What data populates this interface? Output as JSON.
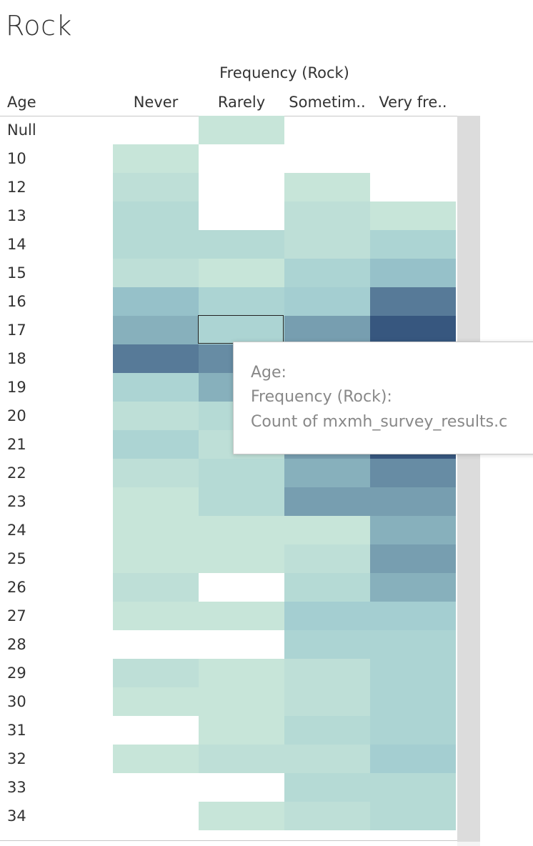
{
  "chart_data": {
    "type": "heatmap",
    "title": "Rock",
    "column_group_label": "Frequency (Rock)",
    "row_header": "Age",
    "columns": [
      "Never",
      "Rarely",
      "Sometim..",
      "Very fre.."
    ],
    "rows": [
      "Null",
      "10",
      "12",
      "13",
      "14",
      "15",
      "16",
      "17",
      "18",
      "19",
      "20",
      "21",
      "22",
      "23",
      "24",
      "25",
      "26",
      "27",
      "28",
      "29",
      "30",
      "31",
      "32",
      "33",
      "34"
    ],
    "values": [
      [
        null,
        1,
        null,
        null
      ],
      [
        1,
        null,
        null,
        null
      ],
      [
        2,
        null,
        1,
        null
      ],
      [
        3,
        null,
        2,
        1
      ],
      [
        3,
        3,
        2,
        4
      ],
      [
        2,
        1,
        4,
        6
      ],
      [
        6,
        4,
        5,
        10
      ],
      [
        7,
        4,
        8,
        12
      ],
      [
        10,
        9,
        8,
        12
      ],
      [
        4,
        7,
        6,
        11
      ],
      [
        2,
        3,
        7,
        11
      ],
      [
        4,
        2,
        8,
        12
      ],
      [
        2,
        3,
        7,
        9
      ],
      [
        1,
        3,
        8,
        8
      ],
      [
        1,
        1,
        1,
        7
      ],
      [
        1,
        1,
        2,
        8
      ],
      [
        2,
        null,
        3,
        7
      ],
      [
        1,
        1,
        5,
        5
      ],
      [
        null,
        null,
        4,
        4
      ],
      [
        2,
        1,
        2,
        4
      ],
      [
        1,
        1,
        2,
        4
      ],
      [
        null,
        1,
        3,
        4
      ],
      [
        1,
        2,
        2,
        5
      ],
      [
        null,
        null,
        3,
        3
      ],
      [
        null,
        1,
        2,
        3
      ]
    ],
    "color_scale": {
      "min": 1,
      "max": 12,
      "low": "#c7e5d9",
      "high": "#37577f"
    },
    "legend": "none"
  },
  "tooltip": {
    "line1": "Age:",
    "line2": "Frequency (Rock):",
    "line3": "Count of mxmh_survey_results.c"
  }
}
